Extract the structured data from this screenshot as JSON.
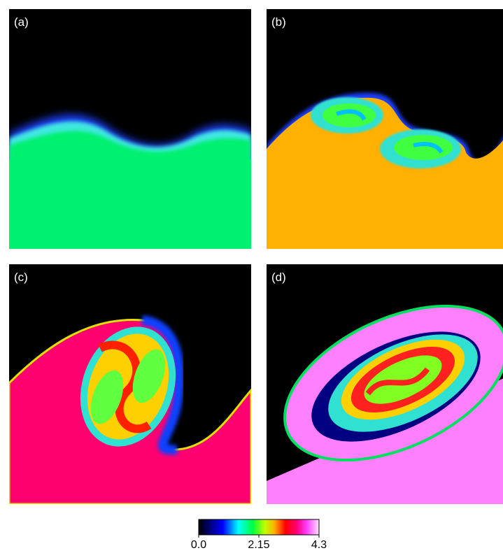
{
  "panels": [
    {
      "label": "(a)"
    },
    {
      "label": "(b)"
    },
    {
      "label": "(c)"
    },
    {
      "label": "(d)"
    }
  ],
  "colorbar": {
    "lim": [
      0,
      4.3
    ],
    "ticks": [
      {
        "value": 0,
        "label": "0.0"
      },
      2.15,
      4.3
    ]
  }
}
